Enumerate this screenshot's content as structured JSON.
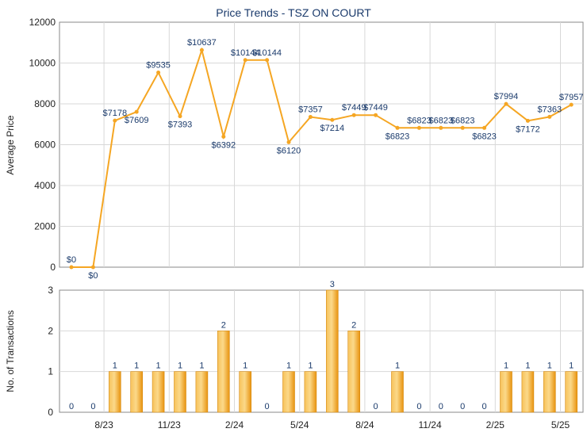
{
  "chart_data": [
    {
      "type": "line",
      "title": "Price Trends - TSZ ON COURT",
      "xlabel": "",
      "ylabel": "Average Price",
      "ylim": [
        0,
        12000
      ],
      "yticks": [
        0,
        2000,
        4000,
        6000,
        8000,
        10000,
        12000
      ],
      "grid": true,
      "color": "#f5a623",
      "x_tick_labels": [
        "8/23",
        "11/23",
        "2/24",
        "5/24",
        "8/24",
        "11/24",
        "2/25",
        "5/25"
      ],
      "values": [
        0,
        0,
        7178,
        7609,
        9535,
        7393,
        10637,
        6392,
        10144,
        10144,
        6120,
        7357,
        7214,
        7449,
        7449,
        6823,
        6823,
        6823,
        6823,
        6823,
        7994,
        7172,
        7363,
        7957
      ],
      "labels": [
        "$0",
        "$0",
        "$7178",
        "$7609",
        "$9535",
        "$7393",
        "$10637",
        "$6392",
        "$10144",
        "$10144",
        "$6120",
        "$7357",
        "$7214",
        "$7449",
        "$7449",
        "$6823",
        "$6823",
        "$6823",
        "$6823",
        "$6823",
        "$7994",
        "$7172",
        "$7363",
        "$7957"
      ]
    },
    {
      "type": "bar",
      "ylabel": "No. of Transactions",
      "ylim": [
        0,
        3
      ],
      "yticks": [
        0,
        1,
        2,
        3
      ],
      "grid": true,
      "color": "#f0a020",
      "values": [
        0,
        0,
        1,
        1,
        1,
        1,
        1,
        2,
        1,
        0,
        1,
        1,
        3,
        2,
        0,
        1,
        0,
        0,
        0,
        0,
        1,
        1,
        1,
        1
      ],
      "labels": [
        "0",
        "0",
        "1",
        "1",
        "1",
        "1",
        "1",
        "2",
        "1",
        "0",
        "1",
        "1",
        "3",
        "2",
        "0",
        "1",
        "0",
        "0",
        "0",
        "0",
        "1",
        "1",
        "1",
        "1"
      ]
    }
  ]
}
